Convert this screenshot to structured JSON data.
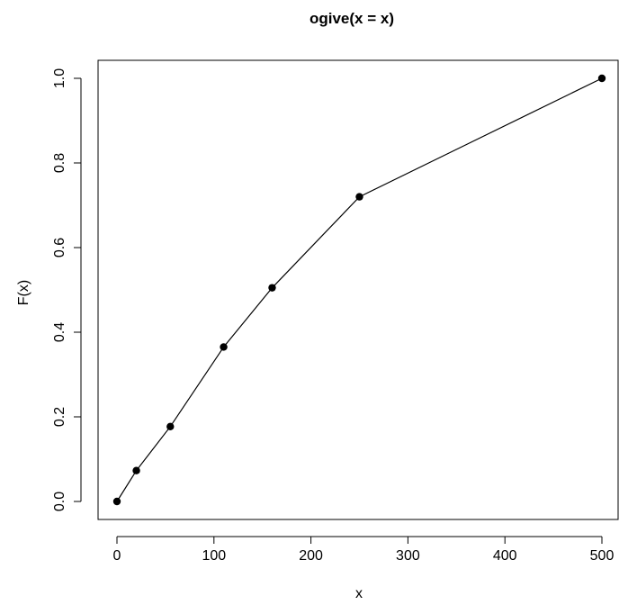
{
  "chart_data": {
    "type": "line",
    "title": "ogive(x = x)",
    "xlabel": "x",
    "ylabel": "F(x)",
    "xlim": [
      0,
      500
    ],
    "ylim": [
      0,
      1
    ],
    "x_ticks": [
      "0",
      "100",
      "200",
      "300",
      "400",
      "500"
    ],
    "y_ticks": [
      "0.0",
      "0.2",
      "0.4",
      "0.6",
      "0.8",
      "1.0"
    ],
    "series": [
      {
        "x": [
          0,
          20,
          55,
          110,
          160,
          250,
          500
        ],
        "y": [
          0.0,
          0.073,
          0.177,
          0.365,
          0.505,
          0.72,
          1.0
        ]
      }
    ],
    "markers": true,
    "grid": false,
    "legend": "none",
    "colors": {
      "line": "#000000",
      "marker": "#000000",
      "axis": "#000000",
      "background": "#ffffff"
    }
  }
}
